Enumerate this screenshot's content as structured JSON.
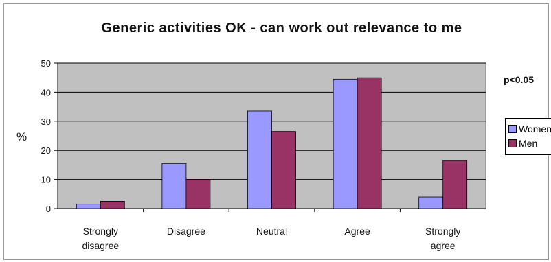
{
  "chart_data": {
    "type": "bar",
    "title": "Generic activities OK - can work out relevance to me",
    "xlabel": "",
    "ylabel": "%",
    "ylim": [
      0,
      50
    ],
    "yticks": [
      0,
      10,
      20,
      30,
      40,
      50
    ],
    "grid": true,
    "legend_position": "right",
    "annotation": "p<0.05",
    "categories": [
      "Strongly disagree",
      "Disagree",
      "Neutral",
      "Agree",
      "Strongly agree"
    ],
    "category_lines": [
      [
        "Strongly",
        "disagree"
      ],
      [
        "Disagree"
      ],
      [
        "Neutral"
      ],
      [
        "Agree"
      ],
      [
        "Strongly",
        "agree"
      ]
    ],
    "series": [
      {
        "name": "Women",
        "values": [
          1.5,
          15.5,
          33.5,
          44.5,
          4
        ],
        "color": "#9999ff"
      },
      {
        "name": "Men",
        "values": [
          2.5,
          10,
          26.5,
          45,
          16.5
        ],
        "color": "#993366"
      }
    ],
    "plot_background": "#c0c0c0"
  }
}
